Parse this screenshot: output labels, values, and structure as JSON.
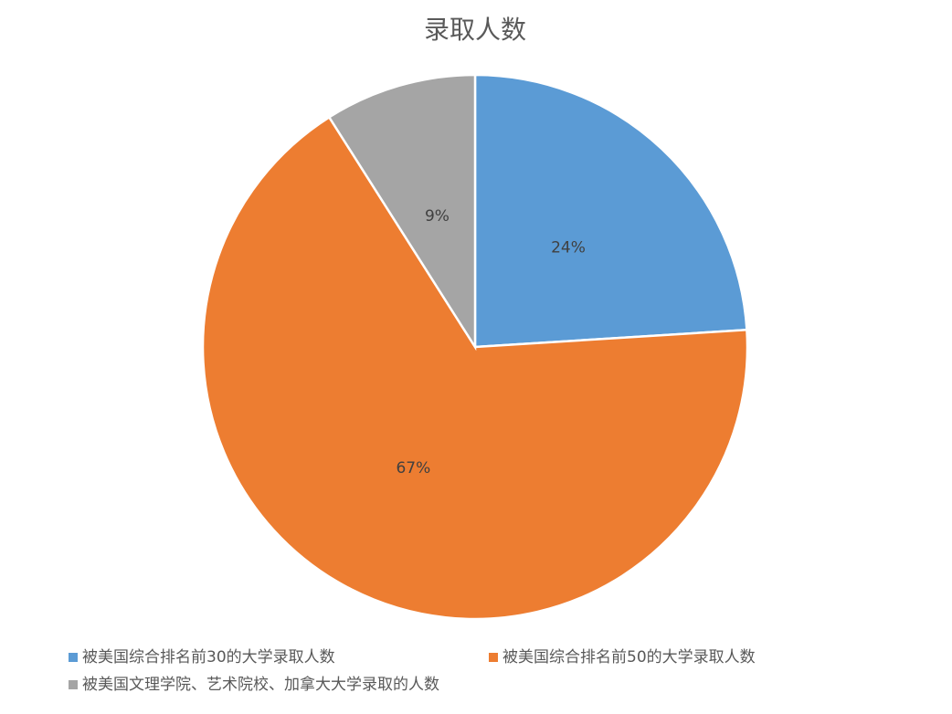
{
  "chart_data": {
    "type": "pie",
    "title": "录取人数",
    "categories": [
      "被美国综合排名前30的大学录取人数",
      "被美国综合排名前50的大学录取人数",
      "被美国文理学院、艺术院校、加拿大大学录取的人数"
    ],
    "values": [
      24,
      67,
      9
    ],
    "value_labels": [
      "24%",
      "67%",
      "9%"
    ],
    "colors": [
      "#5b9bd5",
      "#ed7d31",
      "#a5a5a5"
    ],
    "legend": "bottom"
  }
}
